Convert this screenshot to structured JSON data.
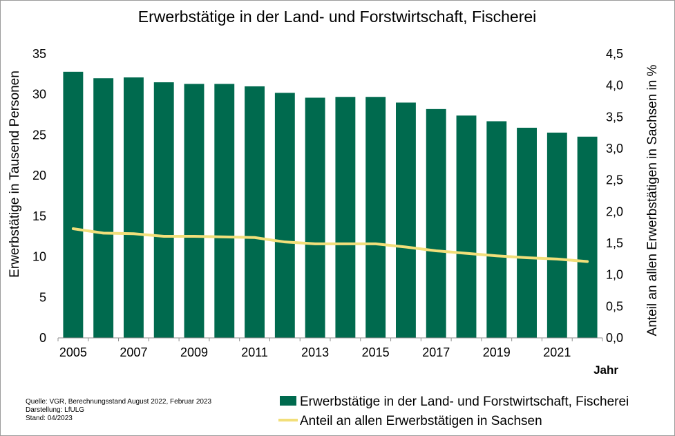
{
  "chart_data": {
    "type": "bar",
    "title": "Erwerbstätige in der Land- und Forstwirtschaft, Fischerei",
    "xlabel": "Jahr",
    "ylabel": "Erwerbstätige in Tausend Personen",
    "y2label": "Anteil an allen Erwerbstätigen in Sachsen in %",
    "ylim": [
      0,
      35
    ],
    "y2lim": [
      0,
      4.5
    ],
    "yticks": [
      "0",
      "5",
      "10",
      "15",
      "20",
      "25",
      "30",
      "35"
    ],
    "y2ticks": [
      "0,0",
      "0,5",
      "1,0",
      "1,5",
      "2,0",
      "2,5",
      "3,0",
      "3,5",
      "4,0",
      "4,5"
    ],
    "categories": [
      "2005",
      "2006",
      "2007",
      "2008",
      "2009",
      "2010",
      "2011",
      "2012",
      "2013",
      "2014",
      "2015",
      "2016",
      "2017",
      "2018",
      "2019",
      "2020",
      "2021",
      "2022"
    ],
    "xtick_labels": [
      "2005",
      "",
      "2007",
      "",
      "2009",
      "",
      "2011",
      "",
      "2013",
      "",
      "2015",
      "",
      "2017",
      "",
      "2019",
      "",
      "2021",
      ""
    ],
    "series": [
      {
        "name": "Erwerbstätige in der Land- und Forstwirtschaft, Fischerei",
        "type": "bar",
        "axis": "left",
        "color": "#006a4e",
        "values": [
          32.8,
          32.0,
          32.1,
          31.5,
          31.3,
          31.3,
          31.0,
          30.2,
          29.6,
          29.7,
          29.7,
          29.0,
          28.2,
          27.4,
          26.7,
          25.9,
          25.3,
          24.8
        ]
      },
      {
        "name": "Anteil an allen Erwerbstätigen in Sachsen",
        "type": "line",
        "axis": "right",
        "color": "#f2df7a",
        "values": [
          1.73,
          1.66,
          1.65,
          1.61,
          1.61,
          1.6,
          1.59,
          1.52,
          1.49,
          1.49,
          1.49,
          1.44,
          1.38,
          1.34,
          1.3,
          1.27,
          1.25,
          1.21
        ]
      }
    ],
    "legend_position": "bottom-right",
    "grid": false
  },
  "source_note": [
    "Quelle: VGR, Berechnungsstand August 2022, Februar 2023",
    "Darstellung: LfULG",
    "Stand: 04/2023"
  ]
}
